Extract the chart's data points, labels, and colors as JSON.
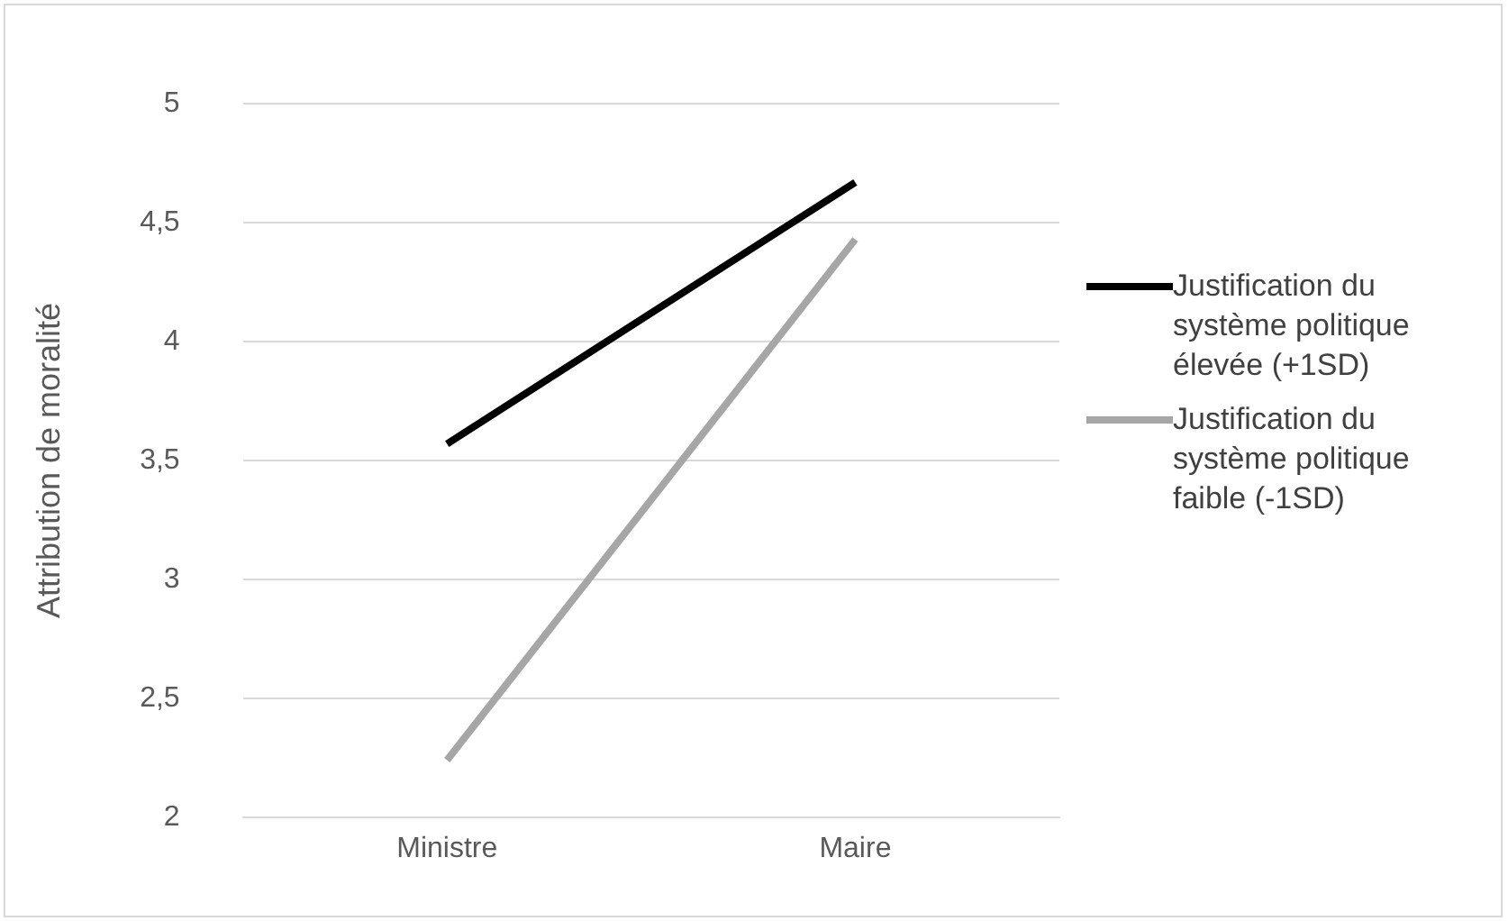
{
  "chart_data": {
    "type": "line",
    "ylabel": "Attribution de moralité",
    "categories": [
      "Ministre",
      "Maire"
    ],
    "series": [
      {
        "name": "Justification du système politique élevée (+1SD)",
        "color": "#000000",
        "values": [
          3.57,
          4.67
        ]
      },
      {
        "name": "Justification du système politique faible (-1SD)",
        "color": "#a6a6a6",
        "values": [
          2.24,
          4.43
        ]
      }
    ],
    "ylim": [
      2,
      5
    ],
    "yticks": [
      2,
      {
        "value": 2.5,
        "label": "2,5"
      },
      3,
      {
        "value": 3.5,
        "label": "3,5"
      },
      4,
      {
        "value": 4.5,
        "label": "4,5"
      },
      5
    ],
    "grid": "y",
    "legend": "right",
    "marker": "none",
    "line_style": "solid"
  }
}
